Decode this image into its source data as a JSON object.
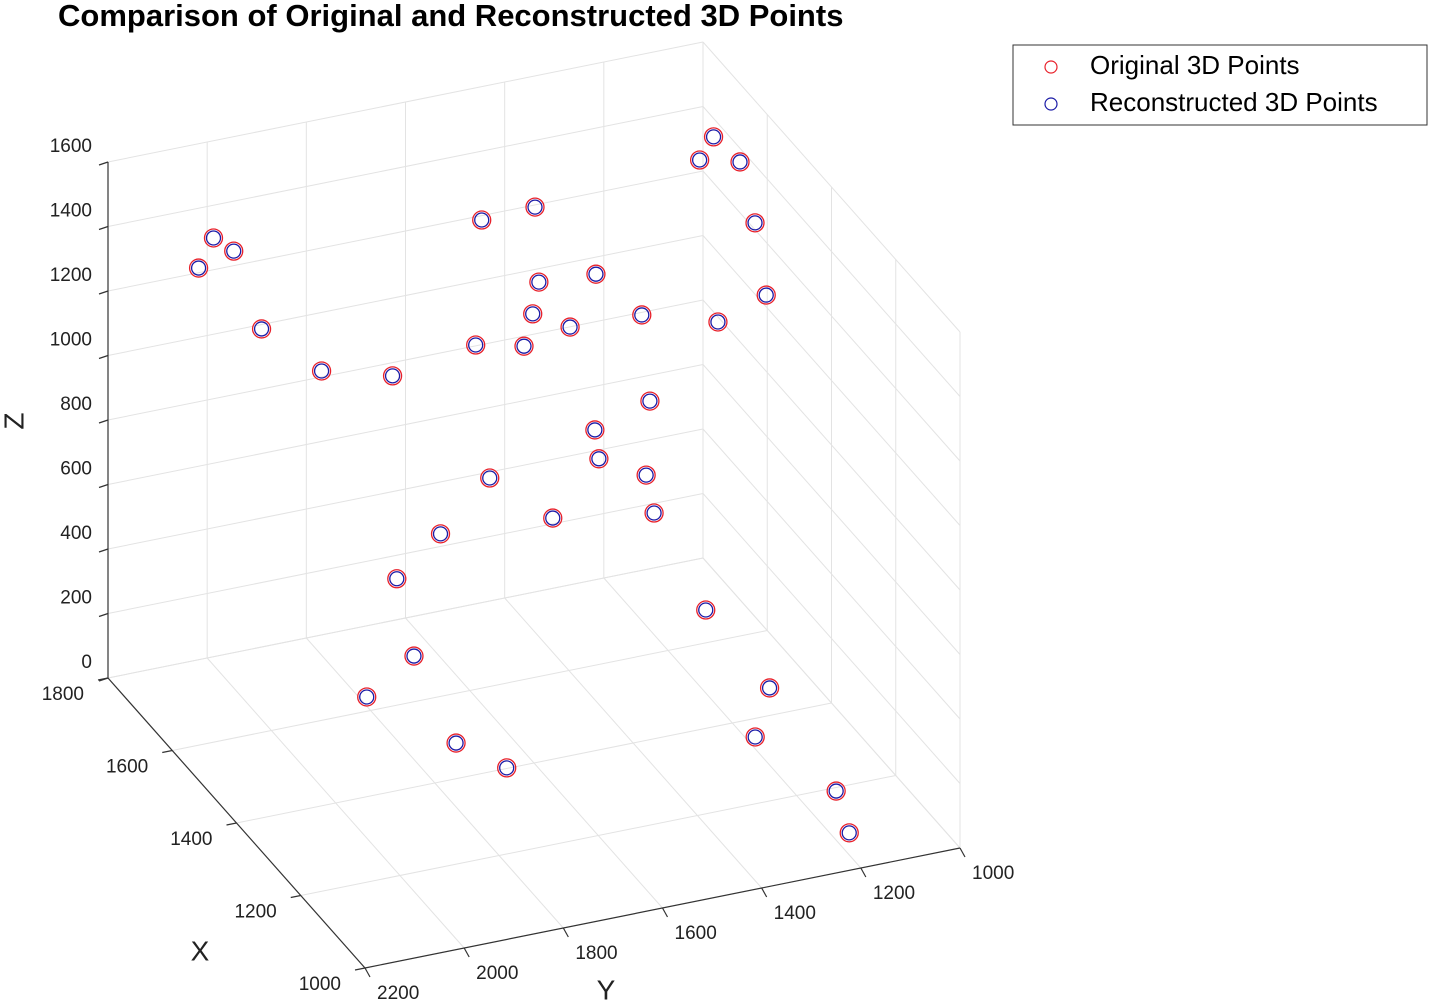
{
  "chart_data": {
    "type": "scatter3d",
    "title": "Comparison of Original and Reconstructed 3D Points",
    "xlabel": "X",
    "ylabel": "Y",
    "zlabel": "Z",
    "xlim": [
      1000,
      1800
    ],
    "ylim": [
      1000,
      2200
    ],
    "zlim": [
      0,
      1600
    ],
    "xticks": [
      1000,
      1200,
      1400,
      1600,
      1800
    ],
    "yticks": [
      1000,
      1200,
      1400,
      1600,
      1800,
      2000,
      2200
    ],
    "zticks": [
      0,
      200,
      400,
      600,
      800,
      1000,
      1200,
      1400,
      1600
    ],
    "grid": true,
    "legend": "upper right",
    "series": [
      {
        "name": "Original 3D Points",
        "color": "#e8202a",
        "x": [
          1656,
          1616,
          1532,
          1405,
          1276,
          1417,
          1508,
          1518,
          1663,
          1600,
          1660,
          1518,
          1360,
          1391,
          1546,
          1422,
          1492,
          1651,
          1550,
          1663,
          1618,
          1513,
          1547,
          1553,
          1568,
          1635,
          1551,
          1587,
          1603,
          1594,
          1526,
          1556,
          1558,
          1389,
          1408,
          1281,
          1326,
          1154,
          1050
        ],
        "y": [
          1072,
          1126,
          1099,
          1151,
          1212,
          1218,
          1528,
          1629,
          2076,
          2076,
          2108,
          2073,
          1501,
          1596,
          1508,
          1513,
          1323,
          1555,
          1523,
          1858,
          1744,
          1293,
          1382,
          1370,
          1265,
          1537,
          1260,
          1441,
          1657,
          1751,
          1172,
          1741,
          1835,
          1132,
          1752,
          1231,
          1703,
          1150,
          1191
        ],
        "z": [
          1490,
          1480,
          1560,
          1530,
          1470,
          1230,
          1580,
          1560,
          1480,
          1510,
          1400,
          1360,
          1530,
          1500,
          1200,
          1300,
          1200,
          1000,
          1100,
          1000,
          1000,
          900,
          800,
          700,
          600,
          600,
          500,
          500,
          500,
          400,
          200,
          200,
          100,
          100,
          100,
          100,
          100,
          50,
          50
        ]
      },
      {
        "name": "Reconstructed 3D Points",
        "color": "#1a1aa6",
        "x": [
          1656,
          1616,
          1532,
          1405,
          1276,
          1417,
          1508,
          1518,
          1663,
          1600,
          1660,
          1518,
          1360,
          1391,
          1546,
          1422,
          1492,
          1651,
          1550,
          1663,
          1618,
          1513,
          1547,
          1553,
          1568,
          1635,
          1551,
          1587,
          1603,
          1594,
          1526,
          1556,
          1558,
          1389,
          1408,
          1281,
          1326,
          1154,
          1050
        ],
        "y": [
          1072,
          1126,
          1099,
          1151,
          1212,
          1218,
          1528,
          1629,
          2076,
          2076,
          2108,
          2073,
          1501,
          1596,
          1508,
          1513,
          1323,
          1555,
          1523,
          1858,
          1744,
          1293,
          1382,
          1370,
          1265,
          1537,
          1260,
          1441,
          1657,
          1751,
          1172,
          1741,
          1835,
          1132,
          1752,
          1231,
          1703,
          1150,
          1191
        ],
        "z": [
          1490,
          1480,
          1560,
          1530,
          1470,
          1230,
          1580,
          1560,
          1480,
          1510,
          1400,
          1360,
          1530,
          1500,
          1200,
          1300,
          1200,
          1000,
          1100,
          1000,
          1000,
          900,
          800,
          700,
          600,
          600,
          500,
          500,
          500,
          400,
          200,
          200,
          100,
          100,
          100,
          100,
          100,
          50,
          50
        ]
      }
    ]
  }
}
